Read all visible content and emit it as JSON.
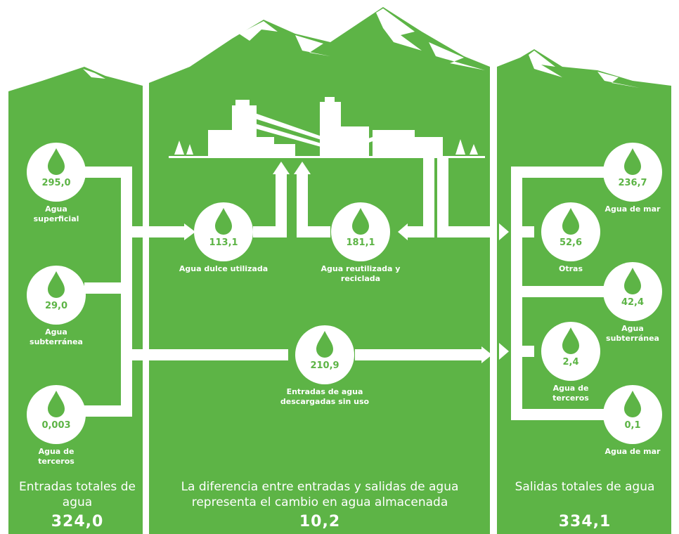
{
  "inputs": {
    "title": "Entradas totales de agua",
    "total": "324,0",
    "items": [
      {
        "value": "295,0",
        "label": "Agua superficial"
      },
      {
        "value": "29,0",
        "label": "Agua subterránea"
      },
      {
        "value": "0,003",
        "label": "Agua de terceros"
      }
    ]
  },
  "middle": {
    "title": "La diferencia entre entradas y salidas de agua representa el cambio en agua almacenada",
    "total": "10,2",
    "items": [
      {
        "value": "113,1",
        "label": "Agua dulce utilizada"
      },
      {
        "value": "181,1",
        "label": "Agua reutilizada y reciclada"
      },
      {
        "value": "210,9",
        "label": "Entradas de agua descargadas sin uso"
      }
    ]
  },
  "outputs": {
    "title": "Salidas totales de agua",
    "total": "334,1",
    "items": [
      {
        "value": "236,7",
        "label": "Agua de mar"
      },
      {
        "value": "52,6",
        "label": "Otras"
      },
      {
        "value": "42,4",
        "label": "Agua subterránea"
      },
      {
        "value": "2,4",
        "label": "Agua de terceros"
      },
      {
        "value": "0,1",
        "label": "Agua de mar"
      }
    ]
  }
}
